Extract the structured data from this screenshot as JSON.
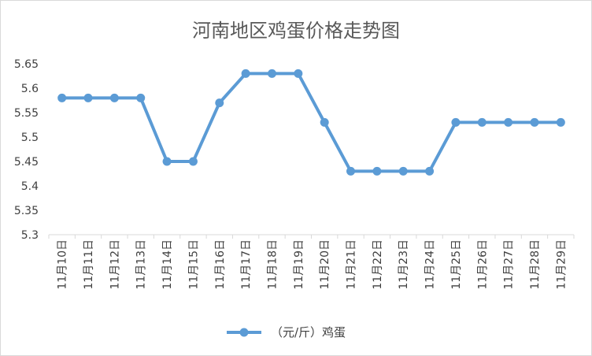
{
  "chart_data": {
    "type": "line",
    "title": "河南地区鸡蛋价格走势图",
    "xlabel": "",
    "ylabel": "",
    "categories": [
      "11月10日",
      "11月11日",
      "11月12日",
      "11月13日",
      "11月14日",
      "11月15日",
      "11月16日",
      "11月17日",
      "11月18日",
      "11月19日",
      "11月20日",
      "11月21日",
      "11月22日",
      "11月23日",
      "11月24日",
      "11月25日",
      "11月26日",
      "11月27日",
      "11月28日",
      "11月29日"
    ],
    "series": [
      {
        "name": "（元/斤）鸡蛋",
        "values": [
          5.58,
          5.58,
          5.58,
          5.58,
          5.45,
          5.45,
          5.57,
          5.63,
          5.63,
          5.63,
          5.53,
          5.43,
          5.43,
          5.43,
          5.43,
          5.53,
          5.53,
          5.53,
          5.53,
          5.53
        ]
      }
    ],
    "ylim": [
      5.3,
      5.65
    ],
    "yticks": [
      "5.3",
      "5.35",
      "5.4",
      "5.45",
      "5.5",
      "5.55",
      "5.6",
      "5.65"
    ],
    "grid": false,
    "legend_position": "bottom",
    "series_color": "#5b9bd5"
  }
}
